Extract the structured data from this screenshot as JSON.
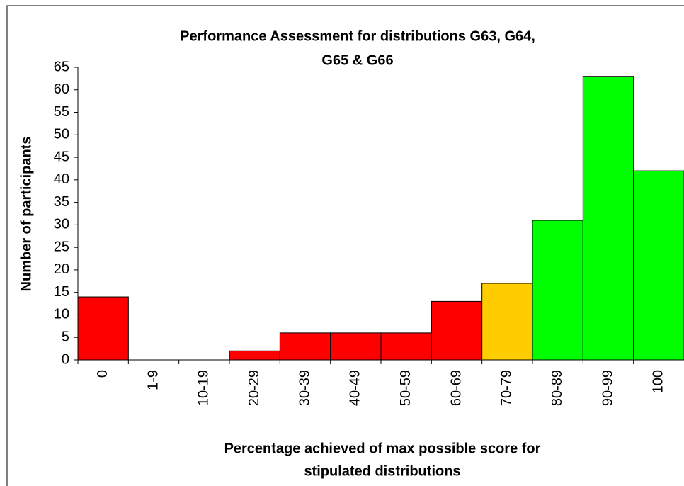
{
  "chart_data": {
    "type": "bar",
    "title": [
      "Performance Assessment for distributions G63, G64,",
      "G65 & G66"
    ],
    "x_label": [
      "Percentage achieved of max possible score for",
      "stipulated distributions"
    ],
    "y_label": "Number of participants",
    "categories": [
      "0",
      "1-9",
      "10-19",
      "20-29",
      "30-39",
      "40-49",
      "50-59",
      "60-69",
      "70-79",
      "80-89",
      "90-99",
      "100"
    ],
    "values": [
      14,
      0,
      0,
      2,
      6,
      6,
      6,
      13,
      17,
      31,
      63,
      42
    ],
    "colors": [
      "#ff0000",
      "#ff0000",
      "#ff0000",
      "#ff0000",
      "#ff0000",
      "#ff0000",
      "#ff0000",
      "#ff0000",
      "#ffcc00",
      "#00ff00",
      "#00ff00",
      "#00ff00"
    ],
    "ylim": [
      0,
      65
    ],
    "yticks": [
      0,
      5,
      10,
      15,
      20,
      25,
      30,
      35,
      40,
      45,
      50,
      55,
      60,
      65
    ],
    "grid": false
  }
}
